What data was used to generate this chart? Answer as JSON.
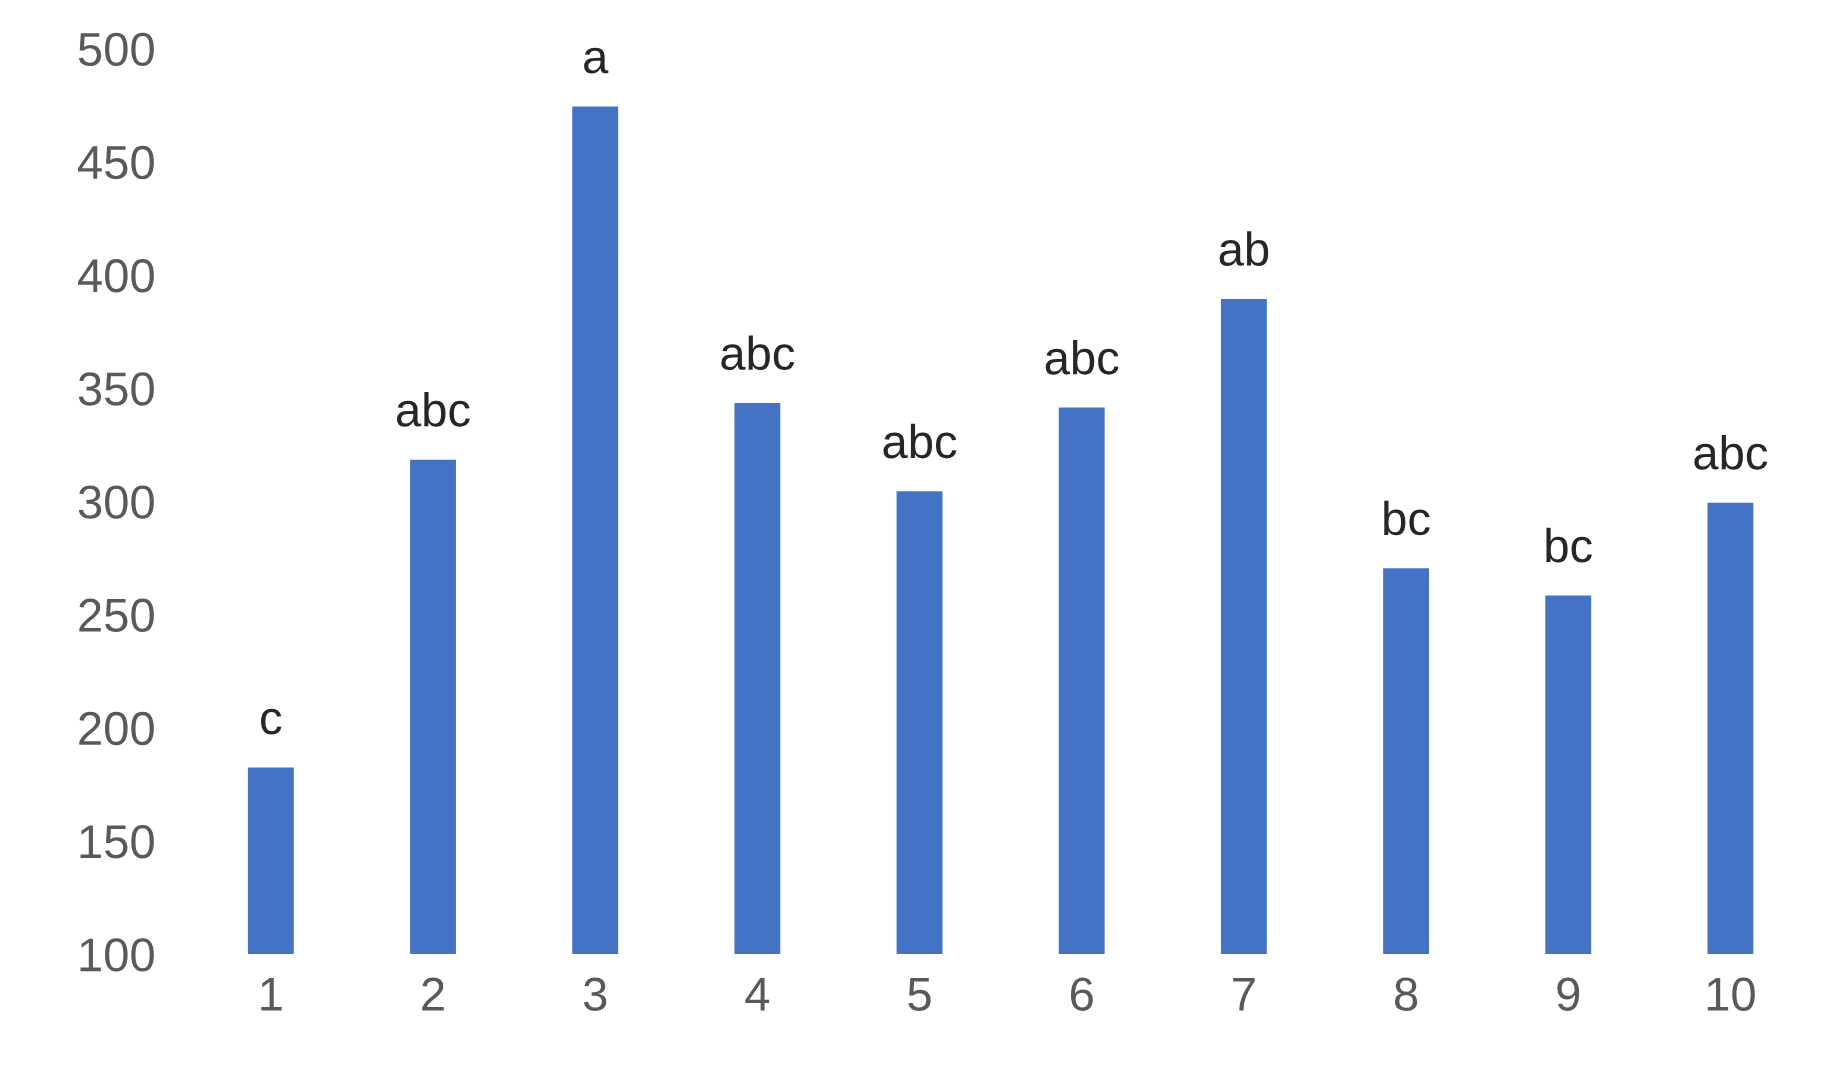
{
  "chart_data": {
    "type": "bar",
    "categories": [
      "1",
      "2",
      "3",
      "4",
      "5",
      "6",
      "7",
      "8",
      "9",
      "10"
    ],
    "values": [
      183,
      319,
      475,
      344,
      305,
      342,
      390,
      271,
      259,
      300
    ],
    "color": "#4472c4",
    "ylim": [
      100,
      500
    ],
    "yticks": [
      100,
      150,
      200,
      250,
      300,
      350,
      400,
      450,
      500
    ],
    "annotations": [
      {
        "text": "c",
        "x": "1",
        "y": 183
      },
      {
        "text": "abc",
        "x": "2",
        "y": 319
      },
      {
        "text": "a",
        "x": "3",
        "y": 475
      },
      {
        "text": "abc",
        "x": "4",
        "y": 344
      },
      {
        "text": "abc",
        "x": "5",
        "y": 305
      },
      {
        "text": "abc",
        "x": "6",
        "y": 342
      },
      {
        "text": "ab",
        "x": "7",
        "y": 390
      },
      {
        "text": "bc",
        "x": "8",
        "y": 271
      },
      {
        "text": "bc",
        "x": "9",
        "y": 259
      },
      {
        "text": "abc",
        "x": "10",
        "y": 300
      }
    ]
  }
}
